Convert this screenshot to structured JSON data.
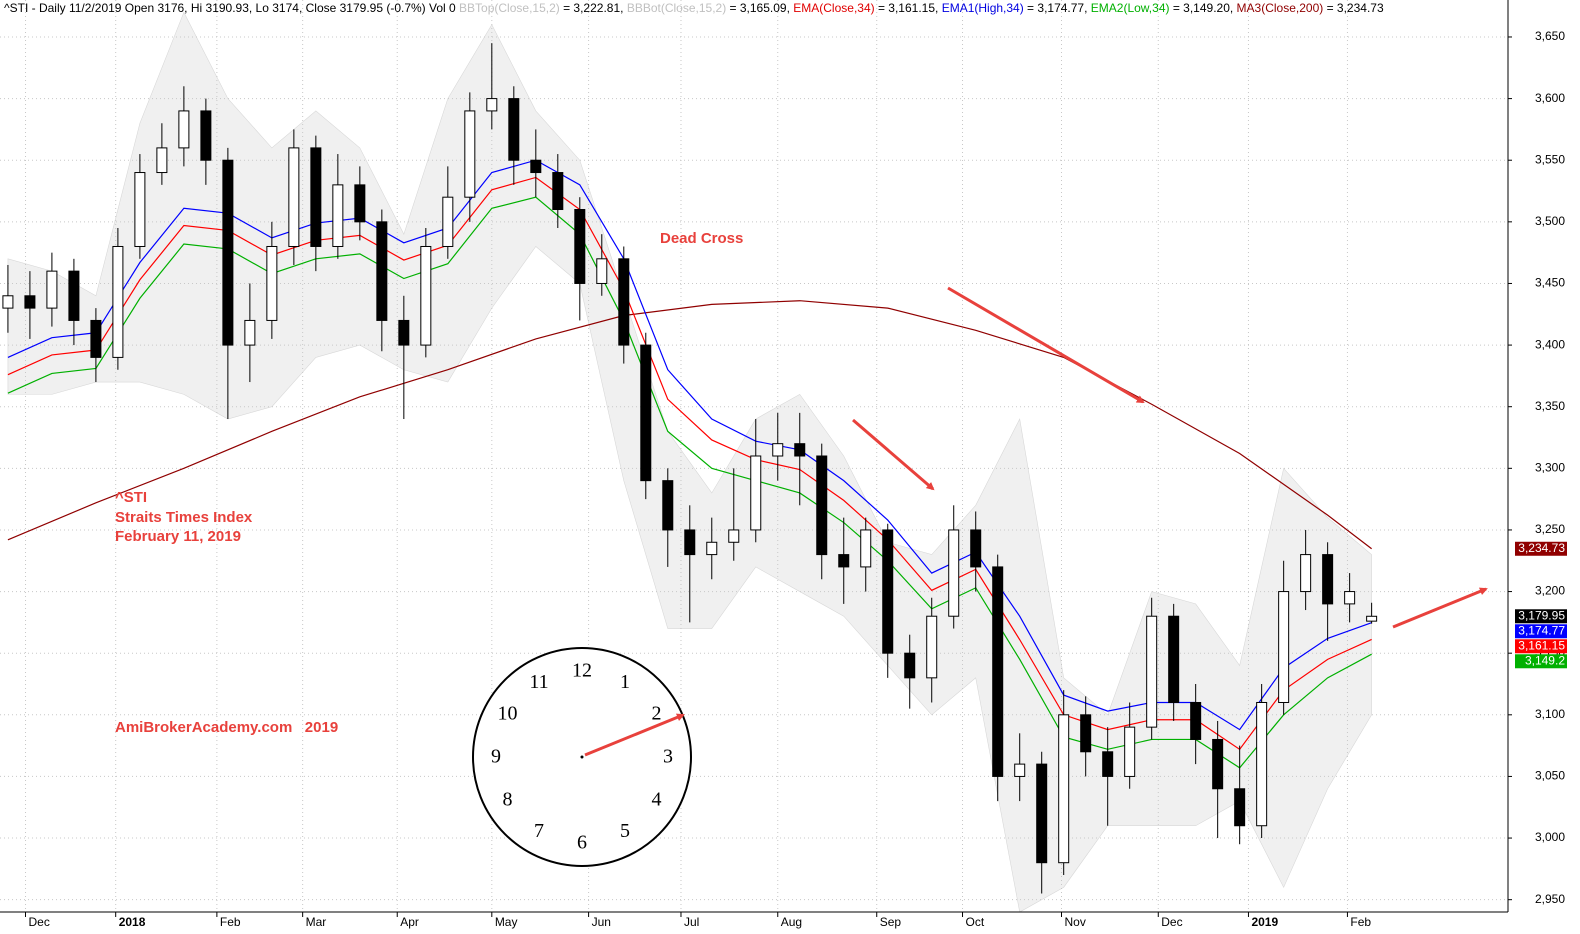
{
  "chart_data": {
    "type": "candlestick",
    "header": [
      {
        "text": "^STI - Daily 11/2/2019 Open 3176, Hi 3190.93, Lo 3174, Close 3179.95 (-0.7%) Vol 0 ",
        "color": "#000000"
      },
      {
        "text": "BBTop(Close,15,2)",
        "color": "#c0c0c0"
      },
      {
        "text": " = 3,222.81, ",
        "color": "#000000"
      },
      {
        "text": "BBBot(Close,15,2)",
        "color": "#c0c0c0"
      },
      {
        "text": " = 3,165.09, ",
        "color": "#000000"
      },
      {
        "text": "EMA(Close,34)",
        "color": "#e00000"
      },
      {
        "text": " = 3,161.15, ",
        "color": "#000000"
      },
      {
        "text": "EMA1(High,34)",
        "color": "#0000e0"
      },
      {
        "text": " = 3,174.77, ",
        "color": "#000000"
      },
      {
        "text": "EMA2(Low,34)",
        "color": "#00b000"
      },
      {
        "text": " = 3,149.20, ",
        "color": "#000000"
      },
      {
        "text": "MA3(Close,200)",
        "color": "#900000"
      },
      {
        "text": " = 3,234.73",
        "color": "#000000"
      }
    ],
    "annotations": [
      "Dead Cross",
      "^STI",
      "Straits Times Index",
      "February 11, 2019",
      "AmiBrokerAcademy.com   2019"
    ],
    "open": [
      3430,
      3440,
      3430,
      3460,
      3420,
      3390,
      3480,
      3540,
      3560,
      3590,
      3550,
      3400,
      3420,
      3480,
      3560,
      3480,
      3530,
      3500,
      3420,
      3400,
      3480,
      3520,
      3590,
      3600,
      3550,
      3540,
      3510,
      3450,
      3470,
      3400,
      3290,
      3250,
      3230,
      3240,
      3250,
      3310,
      3320,
      3310,
      3230,
      3220,
      3250,
      3150,
      3130,
      3180,
      3250,
      3220,
      3050,
      3060,
      2980,
      3100,
      3070,
      3050,
      3090,
      3180,
      3110,
      3080,
      3040,
      3010,
      3110,
      3200,
      3230,
      3190,
      3176
    ],
    "high": [
      3465,
      3460,
      3475,
      3470,
      3430,
      3495,
      3555,
      3580,
      3610,
      3600,
      3560,
      3450,
      3500,
      3575,
      3570,
      3555,
      3545,
      3510,
      3440,
      3495,
      3545,
      3605,
      3645,
      3610,
      3575,
      3555,
      3520,
      3490,
      3480,
      3410,
      3300,
      3270,
      3260,
      3300,
      3340,
      3345,
      3345,
      3320,
      3260,
      3260,
      3255,
      3165,
      3195,
      3270,
      3265,
      3230,
      3085,
      3070,
      3120,
      3115,
      3090,
      3110,
      3195,
      3190,
      3125,
      3095,
      3075,
      3125,
      3225,
      3250,
      3240,
      3215,
      3190.93
    ],
    "low": [
      3410,
      3405,
      3415,
      3400,
      3370,
      3380,
      3470,
      3530,
      3545,
      3530,
      3340,
      3370,
      3405,
      3465,
      3460,
      3470,
      3485,
      3395,
      3340,
      3390,
      3470,
      3500,
      3575,
      3530,
      3520,
      3495,
      3420,
      3440,
      3385,
      3275,
      3220,
      3175,
      3210,
      3225,
      3240,
      3290,
      3270,
      3210,
      3190,
      3200,
      3130,
      3105,
      3110,
      3170,
      3200,
      3030,
      3030,
      2955,
      2970,
      3050,
      3010,
      3040,
      3080,
      3095,
      3060,
      3000,
      2995,
      3000,
      3100,
      3185,
      3160,
      3175,
      3174
    ],
    "close": [
      3440,
      3430,
      3460,
      3420,
      3390,
      3480,
      3540,
      3560,
      3590,
      3550,
      3400,
      3420,
      3480,
      3560,
      3480,
      3530,
      3500,
      3420,
      3400,
      3480,
      3520,
      3590,
      3600,
      3550,
      3540,
      3510,
      3450,
      3470,
      3400,
      3290,
      3250,
      3230,
      3240,
      3250,
      3310,
      3320,
      3310,
      3230,
      3220,
      3250,
      3150,
      3130,
      3180,
      3250,
      3220,
      3050,
      3060,
      2980,
      3100,
      3070,
      3050,
      3090,
      3180,
      3110,
      3080,
      3040,
      3010,
      3110,
      3200,
      3230,
      3190,
      3200,
      3179.95
    ],
    "up_color": "#ffffff",
    "down_color": "#000000",
    "band": {
      "color": "#f0f0f0",
      "x": [
        0,
        2,
        4,
        6,
        8,
        10,
        12,
        14,
        16,
        18,
        20,
        22,
        24,
        26,
        28,
        30,
        32,
        34,
        36,
        38,
        40,
        42,
        44,
        46,
        48,
        50,
        52,
        54,
        56,
        58,
        60,
        62
      ],
      "upper": [
        3470,
        3460,
        3440,
        3580,
        3670,
        3600,
        3560,
        3590,
        3560,
        3490,
        3600,
        3660,
        3590,
        3550,
        3440,
        3330,
        3280,
        3340,
        3360,
        3310,
        3240,
        3230,
        3270,
        3340,
        3130,
        3100,
        3200,
        3190,
        3140,
        3300,
        3260,
        3230
      ],
      "lower": [
        3360,
        3360,
        3370,
        3370,
        3360,
        3340,
        3350,
        3390,
        3400,
        3380,
        3370,
        3430,
        3480,
        3450,
        3290,
        3170,
        3170,
        3220,
        3200,
        3180,
        3140,
        3100,
        3130,
        2940,
        2960,
        3010,
        3010,
        3010,
        3030,
        2960,
        3040,
        3100
      ]
    },
    "lines": [
      {
        "color": "#900000",
        "x": [
          0,
          4,
          8,
          12,
          16,
          20,
          24,
          28,
          32,
          36,
          40,
          44,
          48,
          52,
          56,
          60,
          62
        ],
        "values": [
          3242,
          3272,
          3300,
          3330,
          3358,
          3380,
          3405,
          3424,
          3433,
          3436,
          3430,
          3412,
          3390,
          3352,
          3312,
          3262,
          3234.73
        ]
      },
      {
        "color": "#0000ff",
        "x": [
          0,
          2,
          4,
          6,
          8,
          10,
          12,
          14,
          16,
          18,
          20,
          22,
          24,
          26,
          28,
          30,
          32,
          34,
          36,
          38,
          40,
          42,
          44,
          46,
          48,
          50,
          52,
          54,
          56,
          58,
          60,
          62
        ],
        "values": [
          3390,
          3406,
          3410,
          3467,
          3511,
          3507,
          3487,
          3499,
          3503,
          3483,
          3495,
          3540,
          3550,
          3530,
          3470,
          3380,
          3340,
          3322,
          3315,
          3290,
          3258,
          3215,
          3232,
          3180,
          3116,
          3103,
          3110,
          3110,
          3088,
          3138,
          3162,
          3174.77
        ]
      },
      {
        "color": "#ff0000",
        "x": [
          0,
          2,
          4,
          6,
          8,
          10,
          12,
          14,
          16,
          18,
          20,
          22,
          24,
          26,
          28,
          30,
          32,
          34,
          36,
          38,
          40,
          42,
          44,
          46,
          48,
          50,
          52,
          54,
          56,
          58,
          60,
          62
        ],
        "values": [
          3376,
          3392,
          3396,
          3453,
          3497,
          3493,
          3473,
          3485,
          3489,
          3469,
          3481,
          3526,
          3536,
          3510,
          3445,
          3356,
          3323,
          3307,
          3299,
          3274,
          3242,
          3201,
          3218,
          3161,
          3100,
          3088,
          3096,
          3096,
          3072,
          3120,
          3145,
          3161.15
        ]
      },
      {
        "color": "#00b000",
        "x": [
          0,
          2,
          4,
          6,
          8,
          10,
          12,
          14,
          16,
          18,
          20,
          22,
          24,
          26,
          28,
          30,
          32,
          34,
          36,
          38,
          40,
          42,
          44,
          46,
          48,
          50,
          52,
          54,
          56,
          58,
          60,
          62
        ],
        "values": [
          3361,
          3377,
          3381,
          3438,
          3482,
          3478,
          3458,
          3470,
          3474,
          3454,
          3466,
          3511,
          3520,
          3490,
          3420,
          3330,
          3300,
          3290,
          3280,
          3256,
          3225,
          3186,
          3203,
          3145,
          3082,
          3072,
          3080,
          3080,
          3057,
          3100,
          3130,
          3149.2
        ]
      }
    ],
    "last_values": [
      {
        "value": 3234.73,
        "label": "3,234.73",
        "color": "#900000"
      },
      {
        "value": 3179.95,
        "label": "3,179.95",
        "color": "#000000"
      },
      {
        "value": 3174.77,
        "label": "3,174.77",
        "color": "#0000ff"
      },
      {
        "value": 3161.15,
        "label": "3,161.15",
        "color": "#ff0000"
      },
      {
        "value": 3149.2,
        "label": "3,149.2",
        "color": "#00b000"
      }
    ],
    "xlim": [
      -0.36,
      68.2
    ],
    "xticks": [
      {
        "value": 0.8,
        "label": "Dec"
      },
      {
        "value": 4.9,
        "label": "2018"
      },
      {
        "value": 9.5,
        "label": "Feb"
      },
      {
        "value": 13.4,
        "label": "Mar"
      },
      {
        "value": 17.7,
        "label": "Apr"
      },
      {
        "value": 22,
        "label": "May"
      },
      {
        "value": 26.4,
        "label": "Jun"
      },
      {
        "value": 30.6,
        "label": "Jul"
      },
      {
        "value": 35,
        "label": "Aug"
      },
      {
        "value": 39.5,
        "label": "Sep"
      },
      {
        "value": 43.4,
        "label": "Oct"
      },
      {
        "value": 47.9,
        "label": "Nov"
      },
      {
        "value": 52.3,
        "label": "Dec"
      },
      {
        "value": 56.4,
        "label": "2019"
      },
      {
        "value": 60.9,
        "label": "Feb"
      }
    ],
    "ylim": [
      2940,
      3680
    ],
    "yticks": [
      {
        "value": 2950,
        "label": "2,950"
      },
      {
        "value": 3000,
        "label": "3,000"
      },
      {
        "value": 3050,
        "label": "3,050"
      },
      {
        "value": 3100,
        "label": "3,100"
      },
      {
        "value": 3150,
        "label": "3,150"
      },
      {
        "value": 3200,
        "label": "3,200"
      },
      {
        "value": 3250,
        "label": "3,250"
      },
      {
        "value": 3300,
        "label": "3,300"
      },
      {
        "value": 3350,
        "label": "3,350"
      },
      {
        "value": 3400,
        "label": "3,400"
      },
      {
        "value": 3450,
        "label": "3,450"
      },
      {
        "value": 3500,
        "label": "3,500"
      },
      {
        "value": 3550,
        "label": "3,550"
      },
      {
        "value": 3600,
        "label": "3,600"
      },
      {
        "value": 3650,
        "label": "3,650"
      }
    ],
    "grid": true
  },
  "clock": {
    "numbers": [
      "12",
      "1",
      "2",
      "3",
      "4",
      "5",
      "6",
      "7",
      "8",
      "9",
      "10",
      "11"
    ]
  }
}
